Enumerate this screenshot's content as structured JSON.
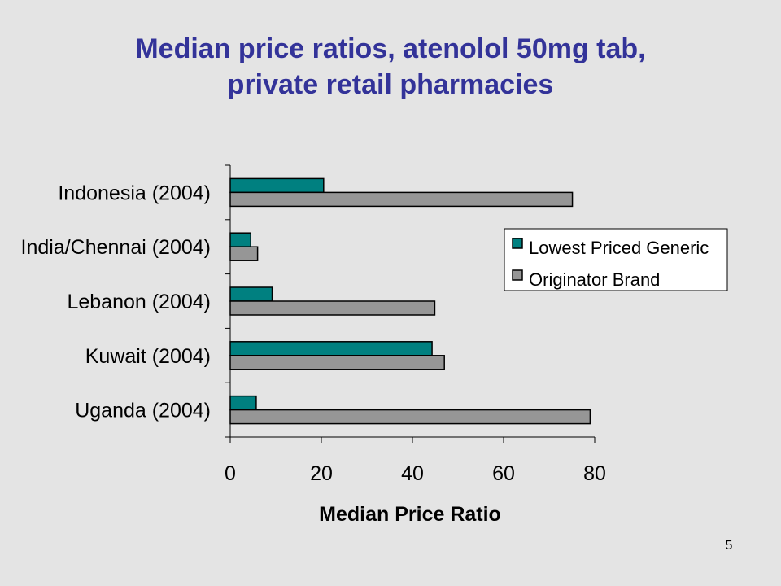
{
  "slide": {
    "title_line1": "Median price ratios, atenolol 50mg tab,",
    "title_line2": "private retail pharmacies",
    "page_number": "5",
    "background_color": "#e4e4e4",
    "title_color": "#333399"
  },
  "chart_data": {
    "type": "bar",
    "orientation": "horizontal",
    "categories": [
      "Indonesia (2004)",
      "India/Chennai (2004)",
      "Lebanon (2004)",
      "Kuwait (2004)",
      "Uganda (2004)"
    ],
    "series": [
      {
        "name": "Lowest Priced Generic",
        "color": "#008080",
        "values": [
          20.5,
          4.5,
          9.2,
          44.3,
          5.7
        ]
      },
      {
        "name": "Originator Brand",
        "color": "#969696",
        "values": [
          75.1,
          6.0,
          44.9,
          47.0,
          79.0
        ]
      }
    ],
    "xlabel": "Median Price Ratio",
    "ylabel": "",
    "xlim": [
      0,
      80
    ],
    "xticks": [
      "0",
      "20",
      "40",
      "60",
      "80"
    ],
    "grid": false,
    "legend_position": "right"
  }
}
